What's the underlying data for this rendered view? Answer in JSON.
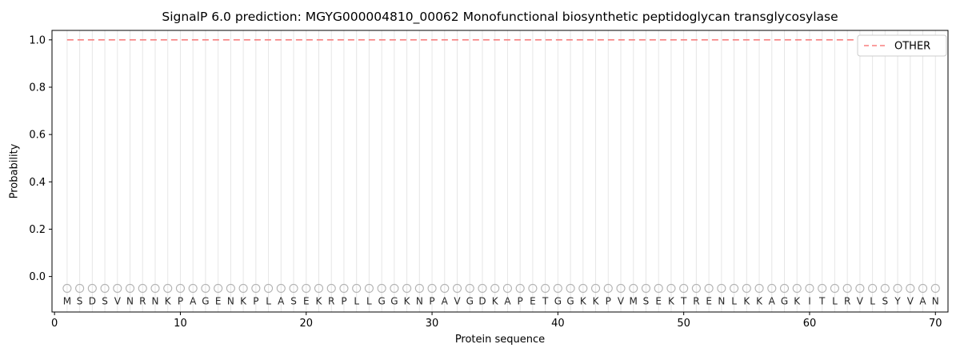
{
  "chart_data": {
    "type": "line",
    "title": "SignalP 6.0 prediction: MGYG000004810_00062 Monofunctional biosynthetic peptidoglycan transglycosylase",
    "xlabel": "Protein sequence",
    "ylabel": "Probability",
    "xlim": [
      -0.2,
      71
    ],
    "ylim": [
      -0.15,
      1.04
    ],
    "x_ticks": [
      "0",
      "10",
      "20",
      "30",
      "40",
      "50",
      "60",
      "70"
    ],
    "y_ticks": [
      "0.0",
      "0.2",
      "0.4",
      "0.6",
      "0.8",
      "1.0"
    ],
    "grid": "vertical line at every residue position",
    "sequence": "MSDSVNRNKPAGENKPLASEKRPLLGGKNPAVGDKAPETGGKKPVMSEKTRENLKKAGKITLRVLSYVAN",
    "sequence_length": 70,
    "series": [
      {
        "name": "OTHER",
        "style": "dashed",
        "color": "#f87f7f",
        "constant_value": 1.0,
        "x_start": 1,
        "x_end": 70
      }
    ],
    "markers": {
      "shape": "open-circle",
      "y": -0.05,
      "at_each_residue": true
    },
    "legend": {
      "position": "upper right",
      "entries": [
        {
          "label": "OTHER",
          "style": "dashed",
          "color": "#f87f7f"
        }
      ]
    },
    "colors": {
      "other": "#f87f7f",
      "grid": "#e6e6e6",
      "marker": "#b3b3b3",
      "letter": "#262626",
      "spine": "#000000",
      "legend_border": "#cccccc"
    }
  }
}
